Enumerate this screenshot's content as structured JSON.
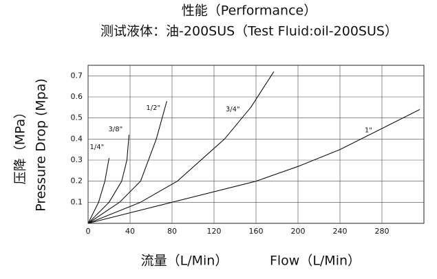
{
  "chart_data": {
    "type": "line",
    "title": "性能（Performance）",
    "subtitle": "测试液体：油-200SUS（Test Fluid:oil-200SUS）",
    "y_label": "压降（MPa）",
    "y_label_en": "Pressure Drop (Mpa)",
    "x_label": "流量（L/Min）",
    "x_label_en": "Flow（L/Min）",
    "xlim": [
      0,
      320
    ],
    "ylim": [
      0,
      0.75
    ],
    "xticks": [
      0,
      40,
      80,
      120,
      160,
      200,
      240,
      280
    ],
    "yticks": [
      0.1,
      0.2,
      0.3,
      0.4,
      0.5,
      0.6,
      0.7
    ],
    "grid": true,
    "series": [
      {
        "name": "1/4\"",
        "color": "#111111",
        "x": [
          0,
          10,
          16,
          20
        ],
        "values": [
          0,
          0.1,
          0.2,
          0.31
        ]
      },
      {
        "name": "3/8\"",
        "color": "#111111",
        "x": [
          0,
          20,
          32,
          37,
          39
        ],
        "values": [
          0,
          0.1,
          0.2,
          0.3,
          0.42
        ]
      },
      {
        "name": "1/2\"",
        "color": "#111111",
        "x": [
          0,
          30,
          50,
          65,
          75
        ],
        "values": [
          0,
          0.1,
          0.2,
          0.4,
          0.58
        ]
      },
      {
        "name": "3/4\"",
        "color": "#111111",
        "x": [
          0,
          50,
          85,
          130,
          155,
          177
        ],
        "values": [
          0,
          0.1,
          0.2,
          0.4,
          0.55,
          0.72
        ]
      },
      {
        "name": "1\"",
        "color": "#111111",
        "x": [
          0,
          80,
          160,
          200,
          240,
          280,
          316
        ],
        "values": [
          0,
          0.1,
          0.2,
          0.27,
          0.35,
          0.45,
          0.54
        ]
      }
    ]
  }
}
